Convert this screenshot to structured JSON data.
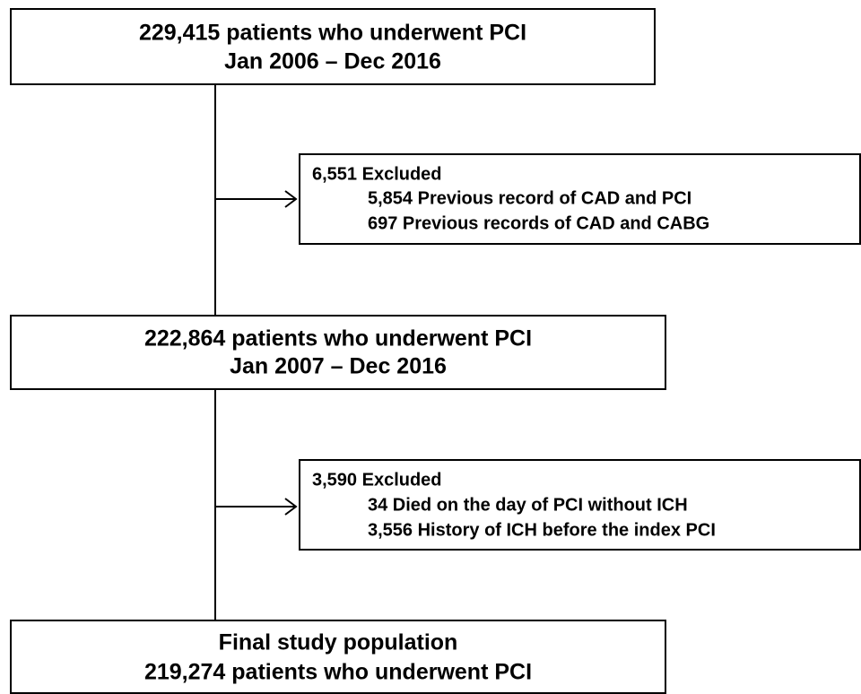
{
  "nodes": [
    {
      "lines": [
        "229,415 patients who underwent PCI",
        "Jan 2006 – Dec 2016"
      ]
    },
    {
      "lines": [
        "222,864 patients who underwent PCI",
        "Jan 2007 – Dec 2016"
      ]
    },
    {
      "lines": [
        "Final study population",
        "219,274 patients who underwent PCI"
      ]
    }
  ],
  "exclusions": [
    {
      "title": "6,551 Excluded",
      "items": [
        "5,854  Previous record of CAD and PCI",
        "697  Previous records of CAD and CABG"
      ]
    },
    {
      "title": "3,590 Excluded",
      "items": [
        "34 Died on the day of PCI without ICH",
        "3,556  History of ICH before the index PCI"
      ]
    }
  ]
}
